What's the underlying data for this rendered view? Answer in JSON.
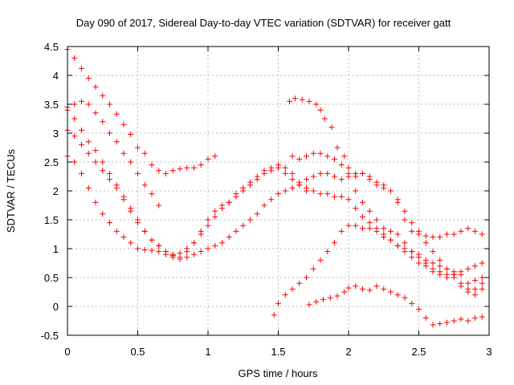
{
  "chart_data": {
    "type": "scatter",
    "title": "Day 090 of 2017, Sidereal Day-to-day VTEC variation (SDTVAR) for receiver gatt",
    "xlabel": "GPS time / hours",
    "ylabel": "SDTVAR / TECUs",
    "xlim": [
      0,
      3
    ],
    "ylim": [
      -0.5,
      4.5
    ],
    "xticks": [
      0,
      0.5,
      1,
      1.5,
      2,
      2.5,
      3
    ],
    "xtick_labels": [
      "0",
      "0.5",
      "1",
      "1.5",
      "2",
      "2.5",
      "3"
    ],
    "yticks": [
      -0.5,
      0,
      0.5,
      1,
      1.5,
      2,
      2.5,
      3,
      3.5,
      4,
      4.5
    ],
    "ytick_labels": [
      "-0.5",
      "0",
      "0.5",
      "1",
      "1.5",
      "2",
      "2.5",
      "3",
      "3.5",
      "4",
      "4.5"
    ],
    "grid": true,
    "marker": "+",
    "color": "#ff0000",
    "series": [
      {
        "name": "s1",
        "x": [
          0.0,
          0.05,
          0.1,
          0.15,
          0.2,
          0.25,
          0.3,
          0.35,
          0.4,
          0.45,
          0.5,
          0.55,
          0.6,
          0.65,
          0.7,
          0.75,
          0.8,
          0.85,
          0.9,
          0.95,
          1.0,
          1.05
        ],
        "y": [
          4.45,
          4.3,
          4.12,
          3.95,
          3.8,
          3.65,
          3.5,
          3.33,
          3.15,
          2.98,
          2.75,
          2.65,
          2.45,
          2.35,
          2.3,
          2.35,
          2.38,
          2.4,
          2.4,
          2.45,
          2.55,
          2.6
        ]
      },
      {
        "name": "s2",
        "x": [
          0.0,
          0.05,
          0.1,
          0.15,
          0.2,
          0.25,
          0.3,
          0.35,
          0.4,
          0.45,
          0.5,
          0.55,
          0.6,
          0.65
        ],
        "y": [
          3.45,
          3.5,
          3.55,
          3.5,
          3.35,
          3.2,
          3.0,
          2.85,
          2.65,
          2.5,
          2.3,
          2.1,
          1.95,
          1.75
        ]
      },
      {
        "name": "s3",
        "x": [
          0.0,
          0.05,
          0.1,
          0.15,
          0.2,
          0.25,
          0.3,
          0.35,
          0.4,
          0.45,
          0.5,
          0.55,
          0.6,
          0.65,
          0.7,
          0.75,
          0.8,
          0.85,
          0.9,
          0.95,
          1.0,
          1.05,
          1.1,
          1.15,
          1.2,
          1.25,
          1.3,
          1.35,
          1.4,
          1.45,
          1.5,
          1.55,
          1.6,
          1.65,
          1.7
        ],
        "y": [
          3.4,
          3.25,
          3.05,
          2.85,
          2.7,
          2.5,
          2.3,
          2.1,
          1.9,
          1.7,
          1.5,
          1.3,
          1.15,
          1.05,
          0.95,
          0.9,
          0.92,
          1.0,
          1.1,
          1.3,
          1.5,
          1.65,
          1.75,
          1.8,
          1.9,
          2.0,
          2.1,
          2.2,
          2.3,
          2.35,
          2.4,
          2.3,
          2.2,
          2.1,
          2.0
        ]
      },
      {
        "name": "s4",
        "x": [
          0.0,
          0.05,
          0.1,
          0.15,
          0.2,
          0.25,
          0.3,
          0.35,
          0.4,
          0.45,
          0.5,
          0.55,
          0.6,
          0.65,
          0.7,
          0.75,
          0.8,
          0.85,
          0.9,
          0.95,
          1.0,
          1.05,
          1.1,
          1.15,
          1.2,
          1.25,
          1.3,
          1.35,
          1.4,
          1.45,
          1.5,
          1.55,
          1.6,
          1.65,
          1.7,
          1.75,
          1.8,
          1.85,
          1.9,
          1.95,
          2.0,
          2.05,
          2.1,
          2.15,
          2.2,
          2.25,
          2.3,
          2.35,
          2.4,
          2.45,
          2.5,
          2.55,
          2.6,
          2.65,
          2.7,
          2.75,
          2.8,
          2.85,
          2.9,
          2.95
        ],
        "y": [
          3.05,
          2.95,
          2.8,
          2.65,
          2.5,
          2.35,
          2.2,
          2.05,
          1.85,
          1.65,
          1.45,
          1.3,
          1.15,
          1.05,
          0.95,
          0.88,
          0.85,
          0.95,
          1.1,
          1.25,
          1.4,
          1.55,
          1.7,
          1.8,
          1.95,
          2.05,
          2.15,
          2.25,
          2.35,
          2.4,
          2.45,
          2.4,
          2.3,
          2.15,
          2.05,
          2.0,
          1.95,
          1.95,
          1.9,
          1.9,
          1.85,
          1.7,
          1.55,
          1.45,
          1.35,
          1.25,
          1.15,
          1.05,
          0.95,
          0.85,
          0.75,
          0.7,
          0.6,
          0.55,
          0.5,
          0.55,
          0.6,
          0.65,
          0.7,
          0.75
        ]
      },
      {
        "name": "s5",
        "x": [
          0.0,
          0.05,
          0.1,
          0.15,
          0.2,
          0.25,
          0.3,
          0.35,
          0.4,
          0.45,
          0.5,
          0.55,
          0.6,
          0.65,
          0.7,
          0.75,
          0.8,
          0.85,
          0.9,
          0.95,
          1.0,
          1.05,
          1.1,
          1.15,
          1.2,
          1.25,
          1.3,
          1.35,
          1.4,
          1.45,
          1.5,
          1.55,
          1.6,
          1.65,
          1.7,
          1.75,
          1.8,
          1.85,
          1.9,
          1.95,
          2.0,
          2.05,
          2.1,
          2.15,
          2.2,
          2.25,
          2.3,
          2.35,
          2.4,
          2.45,
          2.5,
          2.55,
          2.6,
          2.65,
          2.7,
          2.75,
          2.8,
          2.85,
          2.9,
          2.95
        ],
        "y": [
          2.6,
          2.5,
          2.3,
          2.05,
          1.8,
          1.6,
          1.45,
          1.3,
          1.2,
          1.1,
          1.0,
          0.98,
          0.97,
          0.95,
          0.9,
          0.85,
          0.82,
          0.85,
          0.9,
          0.95,
          1.0,
          1.05,
          1.1,
          1.2,
          1.3,
          1.4,
          1.5,
          1.6,
          1.75,
          1.85,
          1.95,
          2.0,
          2.05,
          2.1,
          2.2,
          2.25,
          2.3,
          2.3,
          2.25,
          2.2,
          2.25,
          2.3,
          2.3,
          2.2,
          2.1,
          2.05,
          2.0,
          1.85,
          1.65,
          1.45,
          1.3,
          1.1,
          0.95,
          0.8,
          0.65,
          0.55,
          0.4,
          0.3,
          0.3,
          0.4
        ]
      },
      {
        "name": "s6",
        "x": [
          1.58,
          1.62,
          1.67,
          1.72,
          1.77,
          1.8,
          1.83,
          1.88,
          1.92,
          1.97,
          2.0,
          2.05,
          2.1,
          2.15,
          2.2,
          2.25,
          2.3,
          2.35,
          2.4,
          2.45,
          2.5,
          2.55,
          2.6,
          2.65,
          2.7,
          2.75,
          2.8,
          2.85,
          2.9,
          2.95
        ],
        "y": [
          3.55,
          3.6,
          3.58,
          3.55,
          3.5,
          3.4,
          3.25,
          3.1,
          2.75,
          2.6,
          2.4,
          2.0,
          1.8,
          1.65,
          1.5,
          1.35,
          1.3,
          1.25,
          1.1,
          0.95,
          0.85,
          0.75,
          0.65,
          0.6,
          0.55,
          0.5,
          0.35,
          0.25,
          0.2,
          0.3
        ]
      },
      {
        "name": "s7",
        "x": [
          1.6,
          1.65,
          1.7,
          1.75,
          1.8,
          1.85,
          1.9,
          1.95,
          2.0,
          2.05,
          2.1,
          2.15,
          2.2,
          2.25,
          2.3,
          2.35,
          2.4,
          2.45,
          2.5,
          2.55,
          2.6,
          2.65,
          2.7,
          2.75,
          2.8,
          2.85,
          2.9,
          2.95
        ],
        "y": [
          2.6,
          2.55,
          2.6,
          2.65,
          2.65,
          2.6,
          2.55,
          2.45,
          2.3,
          2.25,
          2.3,
          2.25,
          2.15,
          2.1,
          2.0,
          1.8,
          1.5,
          1.3,
          1.25,
          1.22,
          1.2,
          1.2,
          1.25,
          1.25,
          1.3,
          1.35,
          1.3,
          1.25
        ]
      },
      {
        "name": "s8",
        "x": [
          1.47,
          1.5,
          1.55,
          1.6,
          1.65,
          1.7,
          1.75,
          1.8,
          1.85,
          1.9,
          1.95,
          2.0,
          2.05,
          2.1,
          2.15,
          2.2,
          2.25,
          2.3,
          2.35,
          2.4,
          2.45,
          2.5,
          2.55,
          2.6,
          2.65,
          2.7,
          2.75,
          2.8,
          2.85,
          2.9,
          2.95
        ],
        "y": [
          -0.15,
          0.05,
          0.2,
          0.3,
          0.4,
          0.5,
          0.65,
          0.8,
          0.95,
          1.1,
          1.3,
          1.4,
          1.4,
          1.35,
          1.35,
          1.3,
          1.2,
          1.15,
          1.05,
          1.0,
          0.95,
          0.9,
          0.8,
          0.75,
          0.7,
          0.65,
          0.6,
          0.55,
          0.4,
          0.45,
          0.5
        ]
      },
      {
        "name": "s9",
        "x": [
          1.72,
          1.77,
          1.82,
          1.87,
          1.92,
          1.97,
          2.0,
          2.05,
          2.1,
          2.15,
          2.2,
          2.25,
          2.3,
          2.35,
          2.4,
          2.45,
          2.5,
          2.55,
          2.6,
          2.65,
          2.7,
          2.75,
          2.8,
          2.85,
          2.9,
          2.95
        ],
        "y": [
          0.03,
          0.08,
          0.12,
          0.15,
          0.18,
          0.25,
          0.32,
          0.35,
          0.3,
          0.28,
          0.35,
          0.3,
          0.25,
          0.2,
          0.15,
          0.05,
          -0.05,
          -0.2,
          -0.32,
          -0.3,
          -0.28,
          -0.25,
          -0.22,
          -0.25,
          -0.2,
          -0.18
        ]
      }
    ]
  }
}
